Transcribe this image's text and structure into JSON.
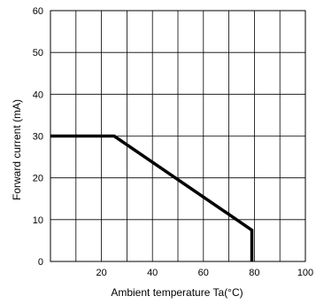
{
  "chart_data": {
    "type": "line",
    "xlabel": "Ambient temperature Ta(°C)",
    "ylabel": "Forward current (mA)",
    "xlim": [
      0,
      100
    ],
    "ylim": [
      0,
      60
    ],
    "x_grid_step": 10,
    "y_grid_step": 10,
    "x_ticks": [
      20,
      40,
      60,
      80,
      100
    ],
    "y_ticks": [
      0,
      10,
      20,
      30,
      40,
      50,
      60
    ],
    "grid": true,
    "series": [
      {
        "x": [
          0,
          25,
          79,
          79
        ],
        "y": [
          30,
          30,
          7.5,
          0
        ],
        "color": "#000000"
      }
    ]
  }
}
